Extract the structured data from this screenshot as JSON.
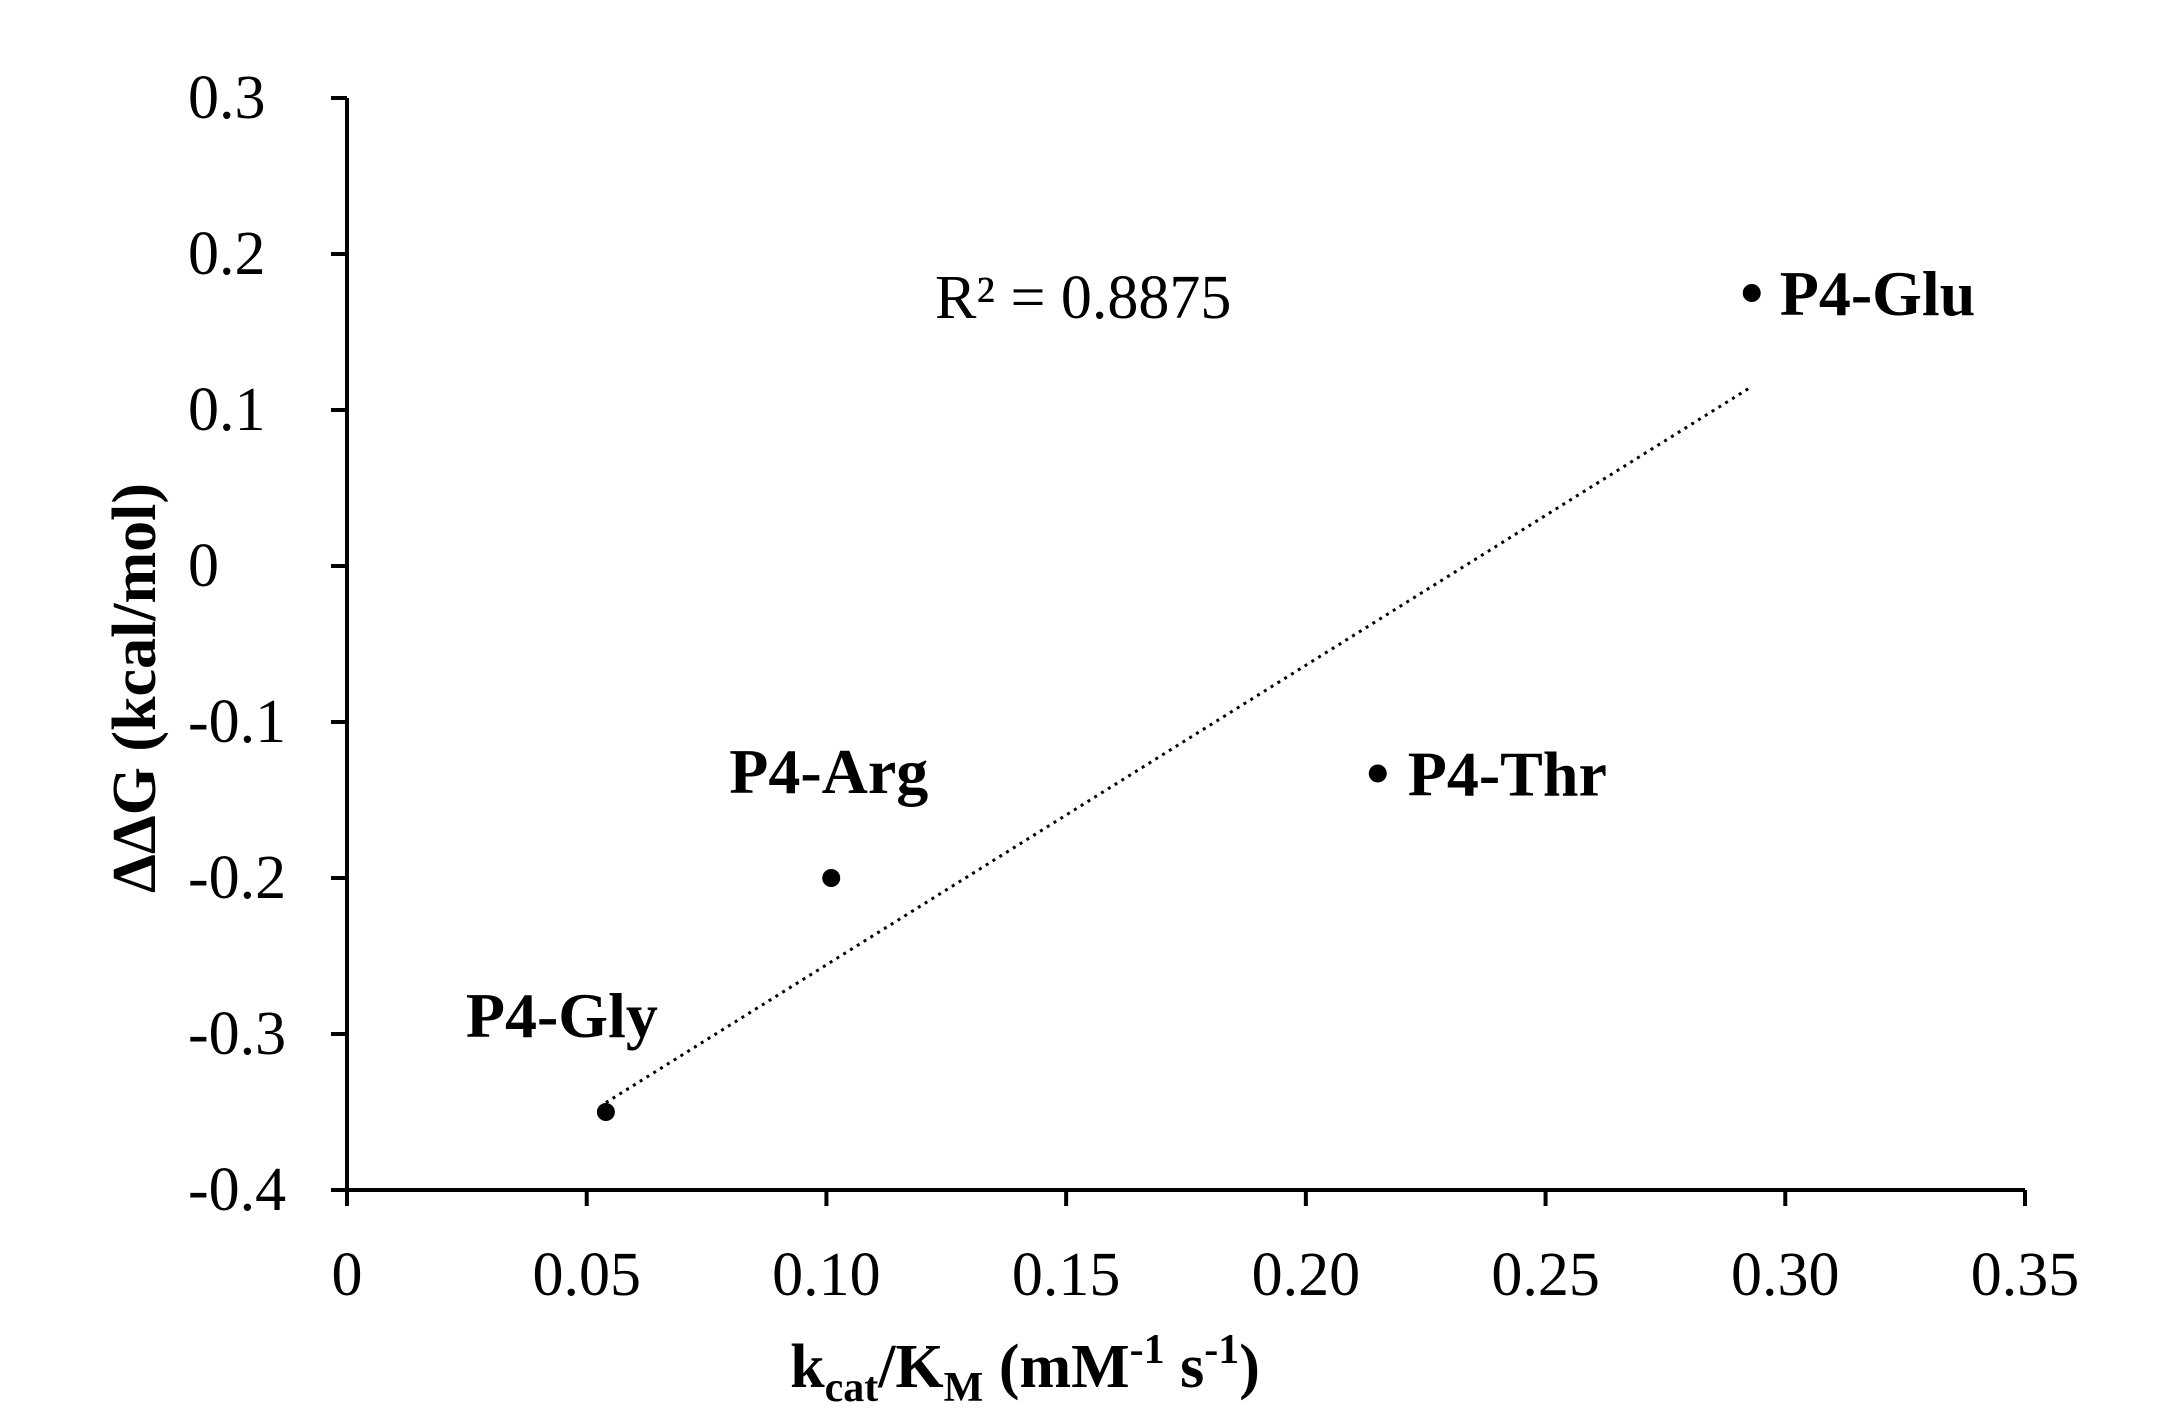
{
  "chart_data": {
    "type": "scatter",
    "title": "",
    "xlabel": {
      "base": "k",
      "sub1": "cat",
      "mid": "/K",
      "sub2": "M",
      "units_pre": " (mM",
      "sup1": "-1",
      "units_mid": " s",
      "sup2": "-1",
      "units_post": ")"
    },
    "ylabel": "ΔΔG (kcal/mol)",
    "xlim": [
      0,
      0.35
    ],
    "ylim": [
      -0.4,
      0.3
    ],
    "x_ticks": [
      "0",
      "0.05",
      "0.10",
      "0.15",
      "0.20",
      "0.25",
      "0.30",
      "0.35"
    ],
    "y_ticks": [
      "0.3",
      "0.2",
      "0.1",
      "0",
      "-0.1",
      "-0.2",
      "-0.3",
      "-0.4"
    ],
    "points": [
      {
        "label": "P4-Gly",
        "x": 0.054,
        "y": -0.35
      },
      {
        "label": "P4-Arg",
        "x": 0.101,
        "y": -0.2
      },
      {
        "label": "P4-Thr",
        "x": 0.215,
        "y": -0.133
      },
      {
        "label": "P4-Glu",
        "x": 0.293,
        "y": 0.175
      }
    ],
    "trendline": {
      "style": "dotted",
      "x": [
        0.054,
        0.293
      ],
      "y": [
        -0.344,
        0.115
      ]
    },
    "annotation": "R² = 0.8875",
    "grid": false,
    "legend": "none"
  }
}
